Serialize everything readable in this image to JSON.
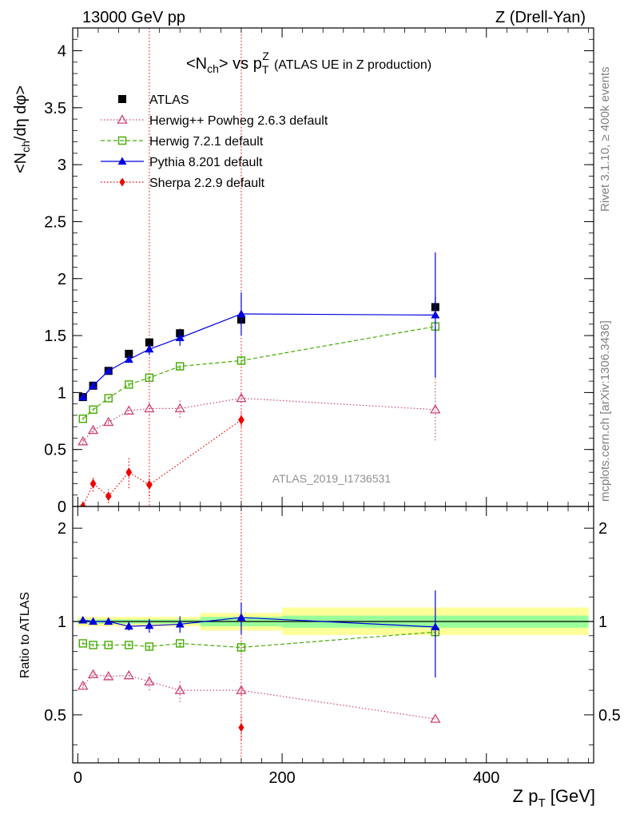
{
  "header": {
    "energy_label": "13000 GeV pp",
    "process_label": "Z (Drell-Yan)"
  },
  "side_labels": {
    "rivet": "Rivet 3.1.10, ≥ 400k events",
    "mcplots": "mcplots.cern.ch [arXiv:1306.3436]"
  },
  "colors": {
    "atlas": "#000000",
    "herwigpp": "#cc4477",
    "herwig7": "#44aa00",
    "pythia": "#0000dd",
    "sherpa": "#ee0000",
    "band_inner": "#99ff99",
    "band_outer": "#ffff99"
  },
  "chart_data": [
    {
      "type": "line",
      "title": "<N_ch> vs p_T^Z (ATLAS UE in Z production)",
      "title_parts": {
        "main_a": "<N",
        "main_sub": "ch",
        "main_b": "> vs p",
        "main_sub2": "T",
        "main_sup": "Z",
        "small": "(ATLAS UE in Z production)"
      },
      "ylabel": "<N_ch/dη dφ>",
      "ylabel_parts": {
        "a": "<N",
        "sub": "ch",
        "b": "/dη dφ>"
      },
      "xlim": [
        -5,
        505
      ],
      "ylim": [
        0,
        4.2
      ],
      "y_ticks": [
        0,
        0.5,
        1,
        1.5,
        2,
        2.5,
        3,
        3.5,
        4
      ],
      "y_tick_labels": [
        "0",
        "0.5",
        "1",
        "1.5",
        "2",
        "2.5",
        "3",
        "3.5",
        "4"
      ],
      "watermark": "ATLAS_2019_I1736531",
      "legend_position": "top-left",
      "series": [
        {
          "name": "ATLAS",
          "key": "atlas",
          "marker": "square-filled",
          "line": "none",
          "x": [
            5,
            15,
            30,
            50,
            70,
            100,
            160,
            350
          ],
          "y": [
            0.96,
            1.06,
            1.19,
            1.34,
            1.44,
            1.52,
            1.64,
            1.75
          ],
          "err": [
            0.02,
            0.02,
            0.02,
            0.03,
            0.03,
            0.04,
            0.05,
            0.09
          ]
        },
        {
          "name": "Herwig++ Powheg 2.6.3 default",
          "key": "herwigpp",
          "marker": "triangle-open",
          "line": "dotted",
          "x": [
            5,
            15,
            30,
            50,
            70,
            100,
            160,
            350
          ],
          "y": [
            0.57,
            0.67,
            0.74,
            0.84,
            0.86,
            0.86,
            0.95,
            0.85
          ],
          "err": [
            0.02,
            0.02,
            0.02,
            0.03,
            0.06,
            0.08,
            0.04,
            0.27
          ]
        },
        {
          "name": "Herwig 7.2.1 default",
          "key": "herwig7",
          "marker": "square-open",
          "line": "dashed",
          "x": [
            5,
            15,
            30,
            50,
            70,
            100,
            160,
            350
          ],
          "y": [
            0.77,
            0.85,
            0.95,
            1.07,
            1.13,
            1.23,
            1.28,
            1.58
          ],
          "err": [
            0.01,
            0.01,
            0.01,
            0.02,
            0.02,
            0.03,
            0.04,
            0.04
          ]
        },
        {
          "name": "Pythia 8.201 default",
          "key": "pythia",
          "marker": "triangle-filled",
          "line": "solid",
          "x": [
            5,
            15,
            30,
            50,
            70,
            100,
            160,
            350
          ],
          "y": [
            0.96,
            1.06,
            1.19,
            1.29,
            1.38,
            1.48,
            1.69,
            1.68
          ],
          "err": [
            0.02,
            0.02,
            0.02,
            0.03,
            0.05,
            0.07,
            0.19,
            0.55
          ]
        },
        {
          "name": "Sherpa 2.2.9 default",
          "key": "sherpa",
          "marker": "diamond-filled",
          "line": "dotted",
          "x": [
            5,
            15,
            30,
            50,
            70,
            160
          ],
          "y": [
            0.0,
            0.2,
            0.09,
            0.3,
            0.19,
            0.76
          ],
          "err": [
            0.05,
            0.07,
            0.06,
            0.14,
            0.1,
            0.06
          ]
        }
      ],
      "vertical_error_lines_x": [
        70,
        160
      ]
    },
    {
      "type": "line",
      "ylabel": "Ratio to ATLAS",
      "xlabel": "Z p_T [GeV]",
      "xlabel_parts": {
        "a": "Z p",
        "sub": "T",
        "b": " [GeV]"
      },
      "xlim": [
        -5,
        505
      ],
      "ylim": [
        0.35,
        2.35
      ],
      "y_scale": "log",
      "x_ticks": [
        0,
        200,
        400
      ],
      "x_tick_labels": [
        "0",
        "200",
        "400"
      ],
      "y_ticks": [
        0.5,
        1,
        2
      ],
      "y_tick_labels": [
        "0.5",
        "1",
        "2"
      ],
      "reference_line": 1,
      "bands": [
        {
          "x": [
            0,
            120
          ],
          "inner": [
            0.985,
            1.015
          ],
          "outer": [
            0.965,
            1.035
          ]
        },
        {
          "x": [
            120,
            200
          ],
          "inner": [
            0.965,
            1.035
          ],
          "outer": [
            0.935,
            1.065
          ]
        },
        {
          "x": [
            200,
            500
          ],
          "inner": [
            0.955,
            1.045
          ],
          "outer": [
            0.905,
            1.11
          ]
        }
      ],
      "series": [
        {
          "key": "herwigpp",
          "marker": "triangle-open",
          "line": "dotted",
          "x": [
            5,
            15,
            30,
            50,
            70,
            100,
            160,
            350
          ],
          "y": [
            0.62,
            0.675,
            0.665,
            0.67,
            0.64,
            0.6,
            0.6,
            0.485
          ],
          "err": [
            0.01,
            0.01,
            0.015,
            0.02,
            0.04,
            0.05,
            0.02,
            0.0
          ]
        },
        {
          "key": "herwig7",
          "marker": "square-open",
          "line": "dashed",
          "x": [
            5,
            15,
            30,
            50,
            70,
            100,
            160,
            350
          ],
          "y": [
            0.85,
            0.84,
            0.84,
            0.84,
            0.83,
            0.85,
            0.825,
            0.925
          ],
          "err": [
            0.01,
            0.01,
            0.01,
            0.01,
            0.02,
            0.02,
            0.03,
            0.03
          ]
        },
        {
          "key": "pythia",
          "marker": "triangle-filled",
          "line": "solid",
          "x": [
            5,
            15,
            30,
            50,
            70,
            100,
            160,
            350
          ],
          "y": [
            1.01,
            1.0,
            1.0,
            0.965,
            0.97,
            0.98,
            1.03,
            0.96
          ],
          "err": [
            0.02,
            0.02,
            0.02,
            0.03,
            0.05,
            0.06,
            0.12,
            0.3
          ]
        },
        {
          "key": "sherpa",
          "marker": "diamond-filled",
          "line": "dotted",
          "x": [
            160
          ],
          "y": [
            0.455
          ],
          "err": [
            0.04
          ]
        }
      ],
      "vertical_error_lines_x": [
        160
      ]
    }
  ]
}
